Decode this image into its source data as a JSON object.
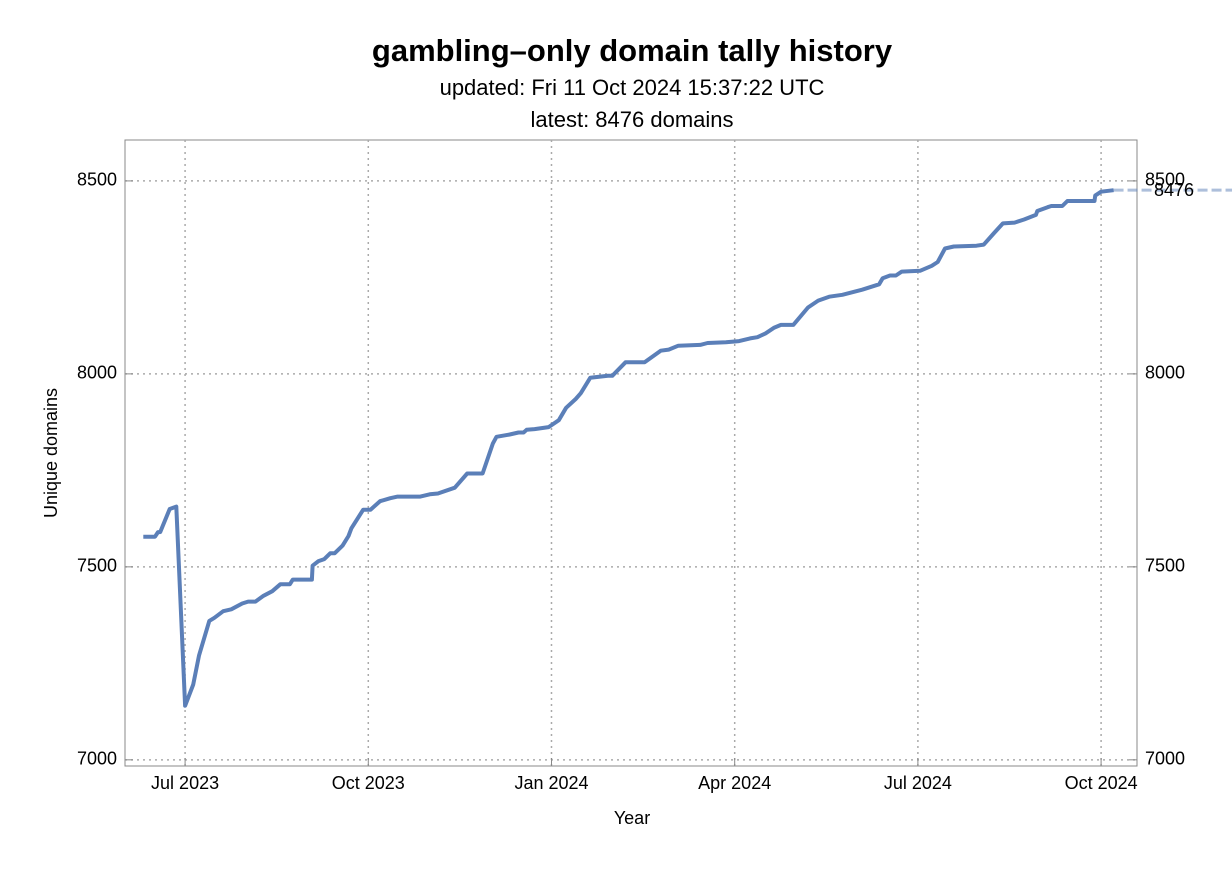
{
  "chart_data": {
    "type": "line",
    "title": "gambling–only domain tally history",
    "subtitle": "updated: Fri 11 Oct 2024 15:37:22 UTC",
    "subtitle2": "latest: 8476 domains",
    "xlabel": "Year",
    "ylabel": "Unique domains",
    "x": [
      2023.443,
      2023.459,
      2023.463,
      2023.466,
      2023.479,
      2023.488,
      2023.5,
      2023.511,
      2023.519,
      2023.533,
      2023.54,
      2023.552,
      2023.563,
      2023.578,
      2023.586,
      2023.596,
      2023.607,
      2023.619,
      2023.63,
      2023.643,
      2023.647,
      2023.666,
      2023.673,
      2023.674,
      2023.682,
      2023.69,
      2023.698,
      2023.704,
      2023.715,
      2023.723,
      2023.727,
      2023.743,
      2023.753,
      2023.766,
      2023.78,
      2023.79,
      2023.821,
      2023.834,
      2023.845,
      2023.868,
      2023.885,
      2023.906,
      2023.92,
      2023.925,
      2023.943,
      2023.955,
      2023.962,
      2023.966,
      2023.977,
      2023.996,
      2024.01,
      2024.02,
      2024.033,
      2024.04,
      2024.053,
      2024.077,
      2024.083,
      2024.101,
      2024.127,
      2024.149,
      2024.16,
      2024.173,
      2024.203,
      2024.213,
      2024.238,
      2024.256,
      2024.271,
      2024.281,
      2024.292,
      2024.304,
      2024.313,
      2024.33,
      2024.35,
      2024.364,
      2024.379,
      2024.397,
      2024.424,
      2024.447,
      2024.452,
      2024.462,
      2024.47,
      2024.478,
      2024.503,
      2024.519,
      2024.527,
      2024.537,
      2024.549,
      2024.58,
      2024.59,
      2024.604,
      2024.616,
      2024.632,
      2024.645,
      2024.661,
      2024.663,
      2024.677,
      2024.682,
      2024.697,
      2024.704,
      2024.734,
      2024.741,
      2024.742,
      2024.75,
      2024.767
    ],
    "series": [
      {
        "color": "#5b7fb8",
        "values": [
          7578,
          7578,
          7590,
          7590,
          7650,
          7656,
          7140,
          7195,
          7270,
          7360,
          7368,
          7385,
          7390,
          7405,
          7410,
          7410,
          7425,
          7437,
          7455,
          7455,
          7467,
          7467,
          7467,
          7503,
          7515,
          7520,
          7535,
          7535,
          7555,
          7580,
          7600,
          7648,
          7648,
          7670,
          7678,
          7682,
          7682,
          7688,
          7690,
          7705,
          7742,
          7742,
          7820,
          7837,
          7843,
          7848,
          7848,
          7855,
          7857,
          7862,
          7880,
          7912,
          7935,
          7950,
          7990,
          7995,
          7995,
          8030,
          8030,
          8060,
          8063,
          8073,
          8075,
          8080,
          8082,
          8085,
          8092,
          8095,
          8105,
          8120,
          8127,
          8127,
          8172,
          8190,
          8200,
          8205,
          8218,
          8232,
          8248,
          8255,
          8255,
          8265,
          8267,
          8280,
          8290,
          8325,
          8330,
          8332,
          8335,
          8365,
          8390,
          8392,
          8400,
          8412,
          8422,
          8432,
          8435,
          8435,
          8448,
          8448,
          8448,
          8462,
          8472,
          8476
        ]
      }
    ],
    "end_label": "8476",
    "xlim": [
      2023.418,
      2024.799
    ],
    "xticks": [
      {
        "value": 2023.5,
        "label": "Jul 2023"
      },
      {
        "value": 2023.75,
        "label": "Oct 2023"
      },
      {
        "value": 2024.0,
        "label": "Jan 2024"
      },
      {
        "value": 2024.25,
        "label": "Apr 2024"
      },
      {
        "value": 2024.5,
        "label": "Jul 2024"
      },
      {
        "value": 2024.75,
        "label": "Oct 2024"
      }
    ],
    "ylim": [
      6984,
      8606
    ],
    "yticks": [
      7000,
      7500,
      8000,
      8500
    ],
    "grid": true
  }
}
